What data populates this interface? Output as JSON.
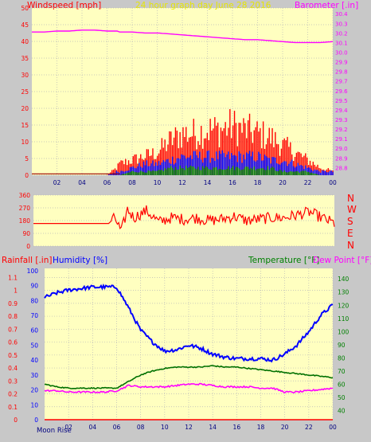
{
  "header": {
    "left_label": "Windspeed [mph]",
    "center_label": "24 hour graph day   June 28 2016",
    "right_label": "Barometer [.in]"
  },
  "colors": {
    "windspeed": "#ff0000",
    "wind_avg": "#0000ff",
    "wind_low": "#008000",
    "barometer": "#ff00ff",
    "direction": "#ff0000",
    "humidity": "#0000ff",
    "temperature": "#007000",
    "dewpoint": "#ff00ff",
    "plot_bg": "#ffffc0",
    "title_color": "#e0e000"
  },
  "mid": {
    "compass": [
      "N",
      "W",
      "S",
      "E",
      "N"
    ]
  },
  "bottom": {
    "rain_label": "Rainfall [.in]",
    "humidity_label": "Humidity [%]",
    "temperature_label": "Temperature [°F]",
    "dewpoint_label": "Dew Point [°F]",
    "moon_rise": "Moon Rise"
  },
  "chart_data": [
    {
      "type": "bar",
      "id": "wind",
      "x_ticks": [
        "02",
        "04",
        "06",
        "08",
        "10",
        "12",
        "14",
        "16",
        "18",
        "20",
        "22",
        "00"
      ],
      "left_axis": {
        "ticks": [
          0,
          5,
          10,
          15,
          20,
          25,
          30,
          35,
          40,
          45,
          50
        ],
        "range": [
          0,
          50
        ]
      },
      "right_axis": {
        "ticks": [
          28.8,
          28.9,
          29.0,
          29.1,
          29.2,
          29.3,
          29.4,
          29.5,
          29.6,
          29.7,
          29.8,
          29.9,
          30.0,
          30.1,
          30.2,
          30.3,
          30.4
        ],
        "range": [
          28.72,
          30.46
        ]
      },
      "hours": [
        0,
        1,
        2,
        3,
        4,
        5,
        6,
        6.8,
        7,
        8,
        9,
        10,
        11,
        12,
        13,
        14,
        15,
        16,
        17,
        18,
        19,
        20,
        21,
        22,
        23,
        24
      ],
      "gust": [
        0,
        0,
        0,
        0,
        0,
        0,
        0,
        2,
        3,
        4,
        5,
        6,
        9,
        11,
        11,
        12,
        12,
        13,
        12,
        11,
        10,
        8,
        6,
        4,
        2,
        1
      ],
      "average": [
        0,
        0,
        0,
        0,
        0,
        0,
        0,
        1,
        1,
        2,
        3,
        3,
        4,
        5,
        5,
        5,
        5,
        5,
        5,
        5,
        4,
        4,
        3,
        2,
        1,
        1
      ],
      "low": [
        0,
        0,
        0,
        0,
        0,
        0,
        0,
        0,
        0,
        1,
        1,
        1,
        2,
        2,
        2,
        2,
        2,
        2,
        2,
        2,
        2,
        1,
        1,
        1,
        0,
        0
      ],
      "barometer": [
        30.21,
        30.21,
        30.22,
        30.22,
        30.23,
        30.23,
        30.22,
        30.22,
        30.21,
        30.21,
        30.2,
        30.2,
        30.19,
        30.18,
        30.17,
        30.16,
        30.15,
        30.14,
        30.13,
        30.13,
        30.12,
        30.11,
        30.1,
        30.1,
        30.1,
        30.11
      ]
    },
    {
      "type": "line",
      "id": "direction",
      "y_ticks": [
        0,
        90,
        180,
        270,
        360
      ],
      "ylim": [
        0,
        360
      ],
      "hours": [
        0,
        1,
        2,
        3,
        4,
        5,
        6,
        6.5,
        7,
        7.5,
        8,
        9,
        10,
        11,
        12,
        13,
        14,
        15,
        16,
        17,
        18,
        19,
        20,
        21,
        22,
        23,
        24
      ],
      "degrees": [
        160,
        160,
        160,
        160,
        160,
        160,
        160,
        200,
        100,
        260,
        200,
        250,
        170,
        200,
        190,
        200,
        180,
        190,
        210,
        180,
        190,
        200,
        200,
        220,
        240,
        200,
        160
      ]
    },
    {
      "type": "line",
      "id": "humidity_temp",
      "x_ticks": [
        "02",
        "04",
        "06",
        "08",
        "10",
        "12",
        "14",
        "16",
        "18",
        "20",
        "22",
        "00"
      ],
      "rain_axis": {
        "ticks": [
          0,
          0.1,
          0.2,
          0.3,
          0.4,
          0.5,
          0.6,
          0.7,
          0.8,
          0.9,
          1.0,
          1.1
        ],
        "range": [
          0,
          1.17
        ]
      },
      "humidity_axis": {
        "ticks": [
          0,
          10,
          20,
          30,
          40,
          50,
          60,
          70,
          80,
          90,
          100
        ],
        "range": [
          0,
          100
        ]
      },
      "temp_axis": {
        "ticks": [
          40,
          50,
          60,
          70,
          80,
          90,
          100,
          110,
          120,
          130,
          140
        ],
        "range": [
          33,
          148
        ]
      },
      "hours": [
        0,
        1,
        2,
        3,
        4,
        5,
        6,
        7,
        8,
        9,
        10,
        11,
        12,
        13,
        14,
        15,
        16,
        17,
        18,
        19,
        20,
        21,
        22,
        23,
        24
      ],
      "humidity": [
        82,
        85,
        87,
        88,
        89,
        89,
        89,
        75,
        60,
        52,
        46,
        47,
        50,
        48,
        44,
        42,
        41,
        41,
        41,
        40,
        44,
        50,
        59,
        70,
        77
      ],
      "temperature": [
        60,
        58,
        57,
        57,
        57,
        57,
        57,
        62,
        67,
        70,
        72,
        73,
        73,
        73,
        74,
        73,
        73,
        72,
        71,
        70,
        69,
        68,
        67,
        66,
        65
      ],
      "dewpoint": [
        55,
        55,
        54,
        54,
        54,
        54,
        55,
        59,
        58,
        58,
        58,
        59,
        60,
        60,
        59,
        58,
        58,
        58,
        57,
        57,
        54,
        54,
        55,
        56,
        57
      ],
      "rain": [
        0,
        0,
        0,
        0,
        0,
        0,
        0,
        0,
        0,
        0,
        0,
        0,
        0,
        0,
        0,
        0,
        0,
        0,
        0,
        0,
        0,
        0,
        0,
        0,
        0
      ]
    }
  ]
}
